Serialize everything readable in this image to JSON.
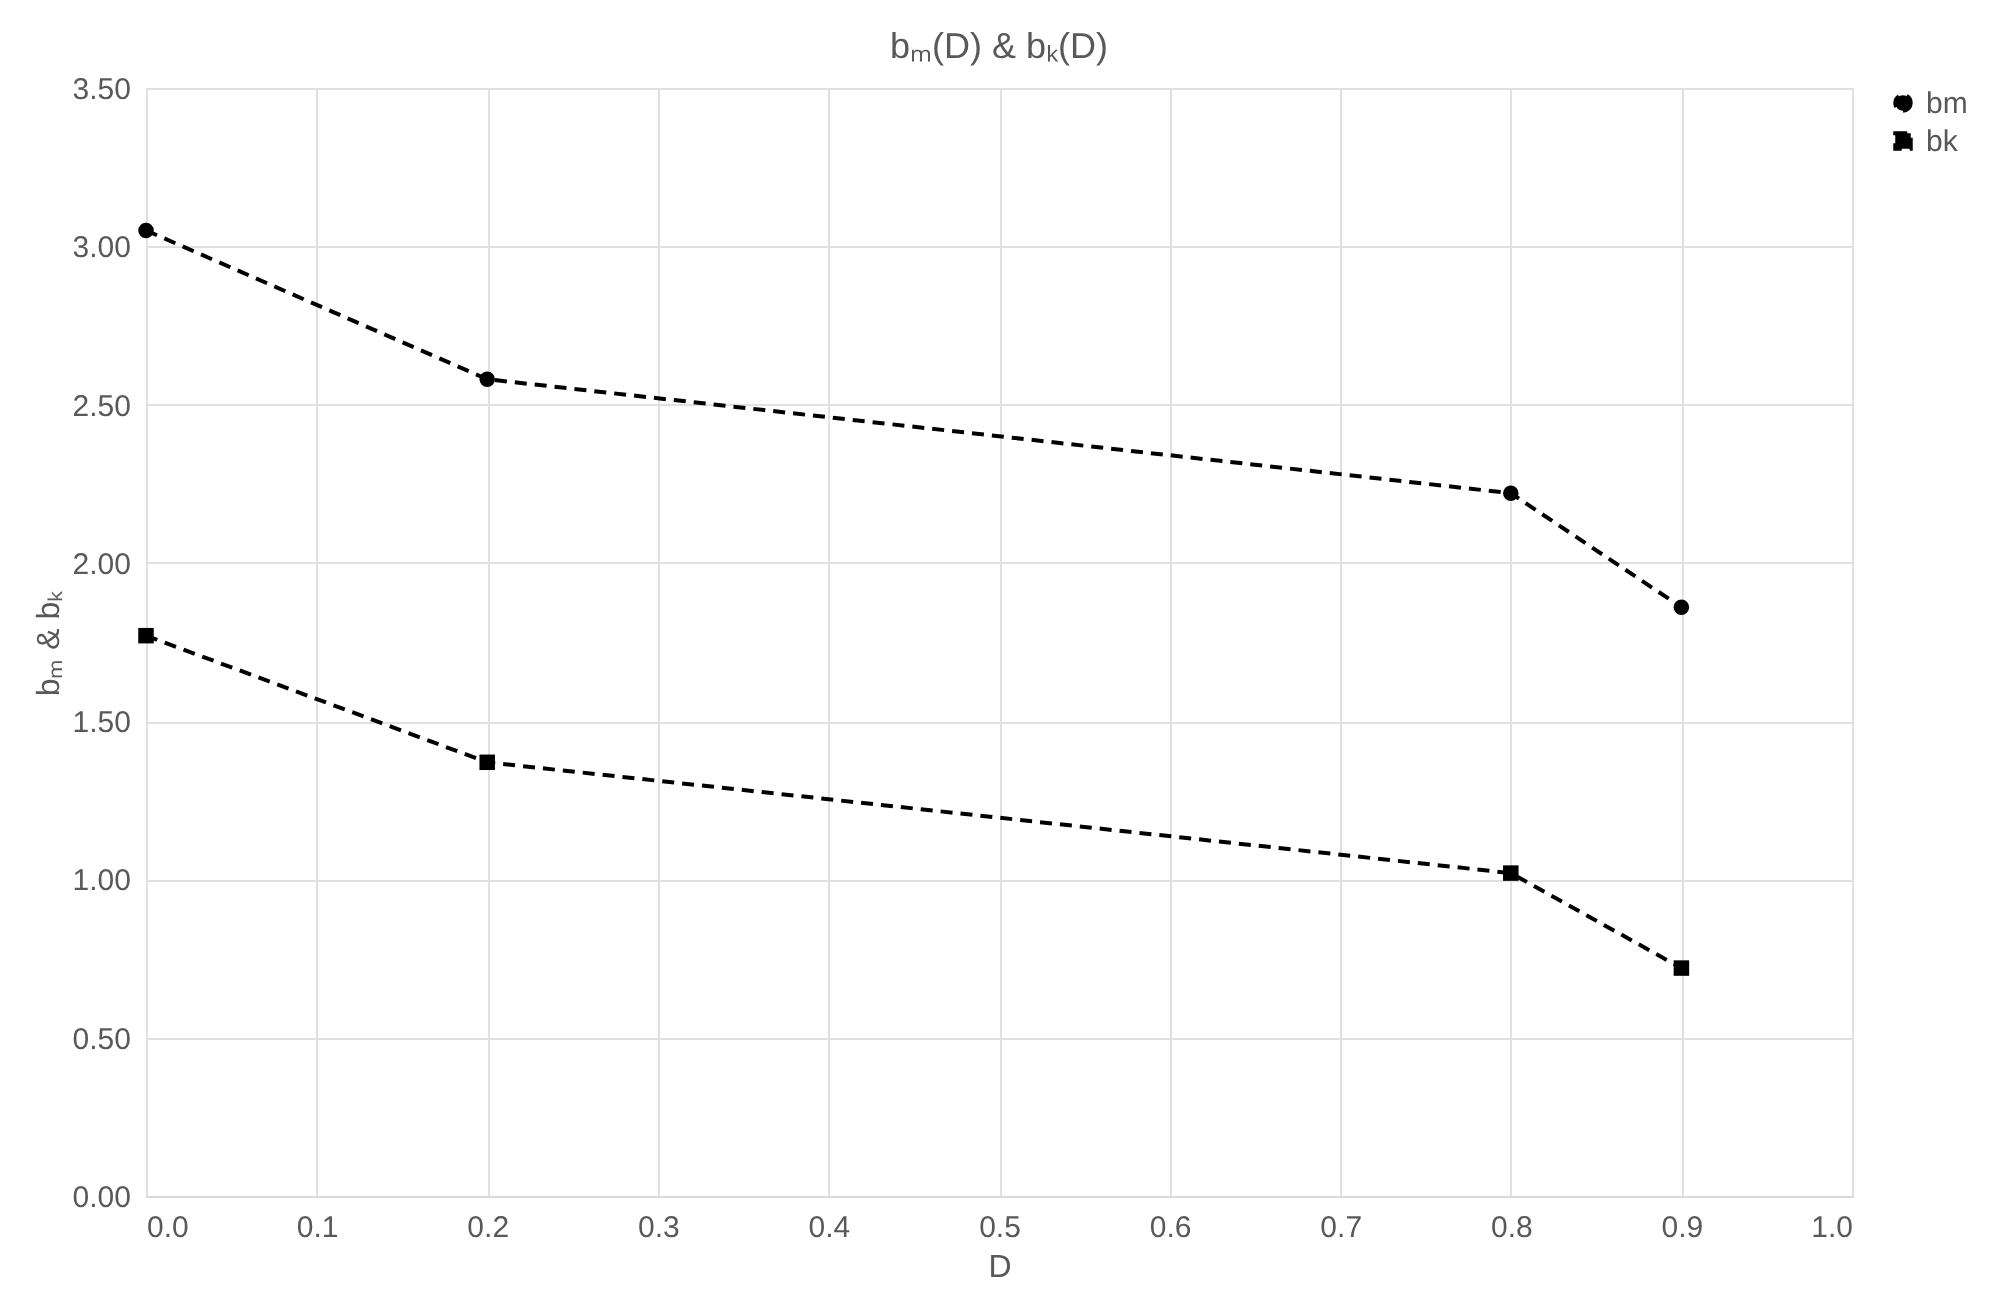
{
  "chart_data": {
    "type": "line",
    "title": "bₘ(D) & bₖ(D)",
    "xlabel": "D",
    "ylabel": "bₘ & bₖ",
    "x": [
      0.0,
      0.2,
      0.8,
      0.9
    ],
    "series": [
      {
        "name": "bm",
        "color": "#000000",
        "values": [
          3.05,
          2.58,
          2.22,
          1.86
        ],
        "marker": "circle",
        "line_style": "dashed"
      },
      {
        "name": "bk",
        "color": "#000000",
        "values": [
          1.77,
          1.37,
          1.02,
          0.72
        ],
        "marker": "square",
        "line_style": "dashed"
      }
    ],
    "xlim": [
      0,
      1
    ],
    "ylim": [
      0,
      3.5
    ],
    "xticks": [
      {
        "value": 0,
        "label": "0.0"
      },
      {
        "value": 0.1,
        "label": "0.1"
      },
      {
        "value": 0.2,
        "label": "0.2"
      },
      {
        "value": 0.3,
        "label": "0.3"
      },
      {
        "value": 0.4,
        "label": "0.4"
      },
      {
        "value": 0.5,
        "label": "0.5"
      },
      {
        "value": 0.6,
        "label": "0.6"
      },
      {
        "value": 0.7,
        "label": "0.7"
      },
      {
        "value": 0.8,
        "label": "0.8"
      },
      {
        "value": 0.9,
        "label": "0.9"
      },
      {
        "value": 1,
        "label": "1.0"
      }
    ],
    "yticks": [
      {
        "value": 0,
        "label": "0.00"
      },
      {
        "value": 0.5,
        "label": "0.50"
      },
      {
        "value": 1,
        "label": "1.00"
      },
      {
        "value": 1.5,
        "label": "1.50"
      },
      {
        "value": 2,
        "label": "2.00"
      },
      {
        "value": 2.5,
        "label": "2.50"
      },
      {
        "value": 3,
        "label": "3.00"
      },
      {
        "value": 3.5,
        "label": "3.50"
      }
    ],
    "grid": true,
    "legend": "right"
  }
}
